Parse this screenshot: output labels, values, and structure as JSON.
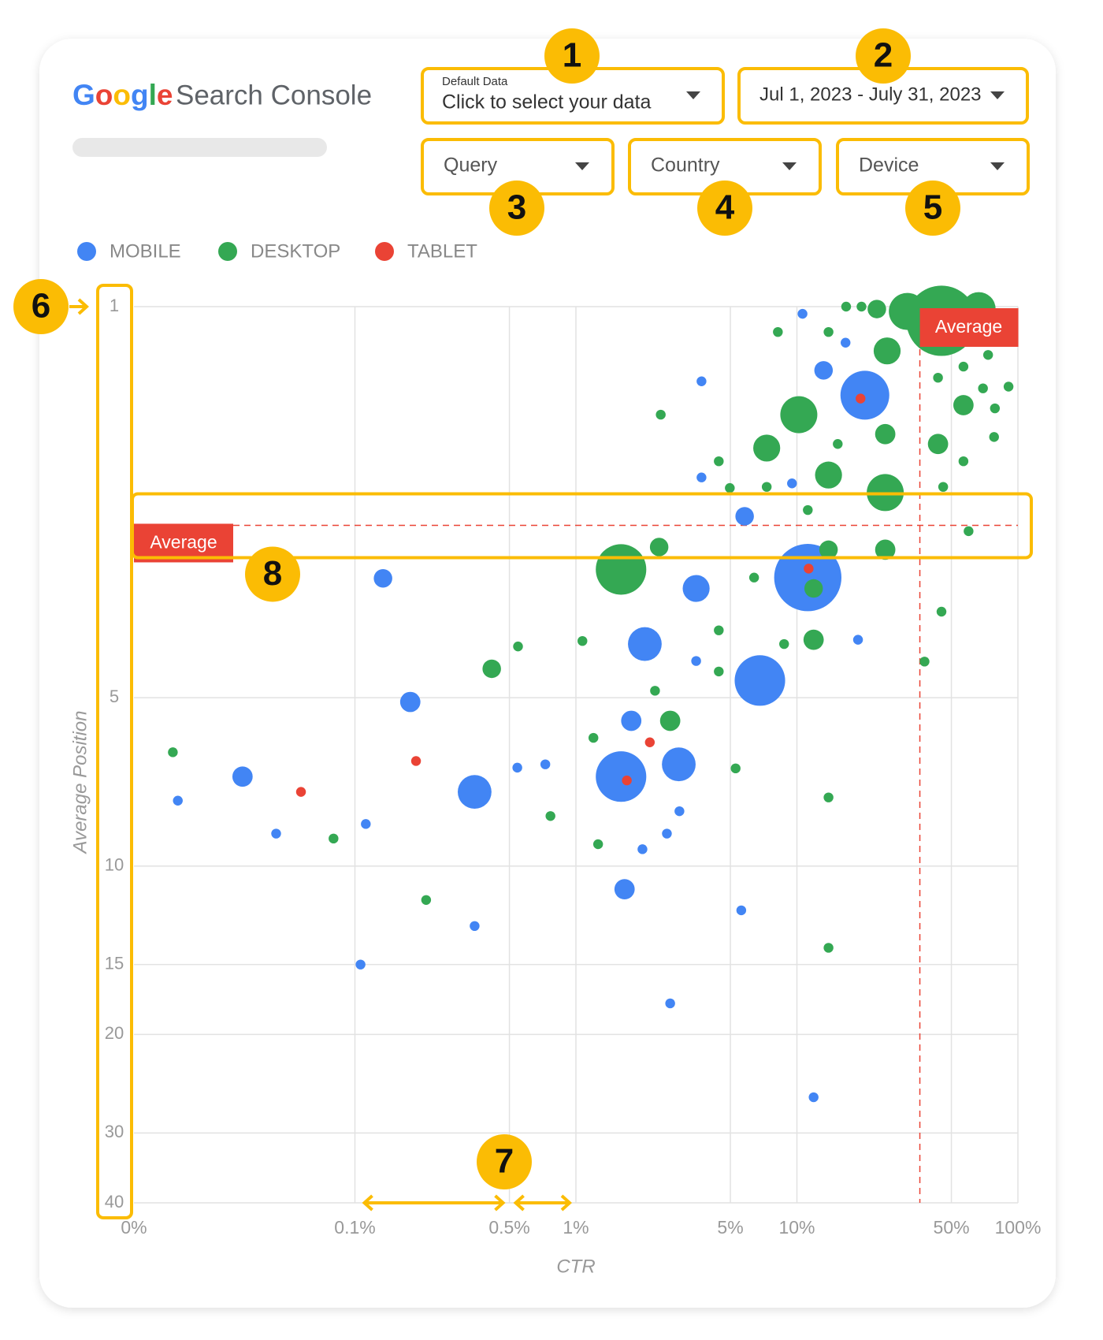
{
  "header": {
    "logo": "Google",
    "product": "Search Console"
  },
  "controls": {
    "data_source": {
      "caption": "Default Data",
      "label": "Click to select your data"
    },
    "date_range": "Jul 1, 2023 - July 31, 2023",
    "filters": [
      "Query",
      "Country",
      "Device"
    ]
  },
  "callouts": [
    1,
    2,
    3,
    4,
    5,
    6,
    7,
    8
  ],
  "chart_data": {
    "type": "bubble",
    "x_label": "CTR",
    "y_label": "Average Position",
    "x_log": true,
    "xlim": [
      0.01,
      100
    ],
    "xticks": [
      {
        "value": 0.01,
        "label": "0%"
      },
      {
        "value": 0.1,
        "label": "0.1%"
      },
      {
        "value": 0.5,
        "label": "0.5%"
      },
      {
        "value": 1,
        "label": "1%"
      },
      {
        "value": 5,
        "label": "5%"
      },
      {
        "value": 10,
        "label": "10%"
      },
      {
        "value": 50,
        "label": "50%"
      },
      {
        "value": 100,
        "label": "100%"
      }
    ],
    "y_log": true,
    "y_reversed": true,
    "ylim": [
      1,
      40
    ],
    "yticks": [
      1,
      5,
      10,
      15,
      20,
      30,
      40
    ],
    "grid": true,
    "legend": "top-left",
    "series": [
      {
        "name": "MOBILE",
        "color": "#4285f4",
        "x": [
          10.6,
          16.6,
          3.7,
          13.2,
          20.3,
          3.7,
          9.5,
          5.8,
          11.2,
          3.5,
          0.134,
          2.05,
          3.5,
          6.8,
          18.9,
          0.178,
          1.78,
          1.6,
          2.92,
          0.031,
          0.0158,
          0.348,
          0.543,
          0.727,
          0.044,
          0.112,
          2.94,
          2.58,
          2.0,
          1.66,
          5.6,
          0.348,
          0.106,
          2.67,
          11.9
        ],
        "values": [
          1.03,
          1.16,
          1.36,
          1.3,
          1.44,
          2.02,
          2.07,
          2.37,
          3.05,
          3.19,
          3.06,
          4.01,
          4.3,
          4.66,
          3.94,
          5.09,
          5.5,
          6.92,
          6.58,
          6.92,
          7.64,
          7.37,
          6.67,
          6.58,
          8.75,
          8.41,
          7.98,
          8.75,
          9.33,
          11.0,
          12.0,
          12.8,
          15.0,
          17.6,
          25.9
        ],
        "sizes": [
          7,
          7,
          7,
          25,
          174,
          7,
          7,
          25,
          330,
          53,
          25,
          83,
          7,
          186,
          7,
          30,
          30,
          186,
          83,
          30,
          7,
          83,
          7,
          7,
          7,
          7,
          7,
          7,
          7,
          30,
          7,
          7,
          7,
          7,
          7
        ]
      },
      {
        "name": "DESKTOP",
        "color": "#34a853",
        "x": [
          16.7,
          19.6,
          23.0,
          31.6,
          45.1,
          66.5,
          8.2,
          13.9,
          25.6,
          73.3,
          56.7,
          43.5,
          69.5,
          90.7,
          56.7,
          78.7,
          2.42,
          10.2,
          25.1,
          7.3,
          15.3,
          43.5,
          78,
          4.43,
          13.9,
          56.7,
          4.97,
          7.3,
          25.1,
          45.9,
          11.2,
          59.8,
          2.38,
          1.6,
          13.9,
          25.1,
          6.4,
          11.9,
          45.1,
          1.07,
          4.43,
          8.75,
          11.9,
          0.547,
          0.416,
          37.8,
          4.43,
          2.28,
          2.67,
          1.2,
          5.28,
          0.015,
          0.767,
          0.08,
          1.26,
          13.9,
          0.21,
          13.9
        ],
        "values": [
          1.0,
          1.0,
          1.01,
          1.02,
          1.06,
          1.01,
          1.11,
          1.11,
          1.2,
          1.22,
          1.28,
          1.34,
          1.4,
          1.39,
          1.5,
          1.52,
          1.56,
          1.56,
          1.69,
          1.79,
          1.76,
          1.76,
          1.71,
          1.89,
          2.0,
          1.89,
          2.11,
          2.1,
          2.15,
          2.1,
          2.31,
          2.52,
          2.69,
          2.95,
          2.72,
          2.72,
          3.05,
          3.19,
          3.51,
          3.96,
          3.79,
          4.01,
          3.94,
          4.05,
          4.44,
          4.31,
          4.49,
          4.86,
          5.5,
          5.9,
          6.69,
          6.26,
          8.14,
          8.93,
          9.14,
          7.54,
          11.5,
          14.0
        ],
        "sizes": [
          7,
          7,
          25,
          100,
          360,
          83,
          7,
          7,
          53,
          7,
          7,
          7,
          7,
          7,
          30,
          7,
          7,
          100,
          30,
          53,
          7,
          30,
          7,
          7,
          53,
          7,
          7,
          7,
          100,
          7,
          7,
          7,
          25,
          186,
          25,
          30,
          7,
          25,
          7,
          7,
          7,
          7,
          30,
          7,
          25,
          7,
          7,
          7,
          30,
          7,
          7,
          7,
          7,
          7,
          7,
          7,
          7,
          7
        ]
      },
      {
        "name": "TABLET",
        "color": "#ea4335",
        "x": [
          19.4,
          11.3,
          2.16,
          1.7,
          0.189,
          0.057
        ],
        "values": [
          1.46,
          2.94,
          6.01,
          7.03,
          6.49,
          7.37
        ],
        "sizes": [
          7,
          7,
          7,
          7,
          7,
          7
        ]
      }
    ],
    "average": {
      "label": "Average",
      "x": 36,
      "y": 2.46,
      "color": "#ea4335"
    }
  }
}
